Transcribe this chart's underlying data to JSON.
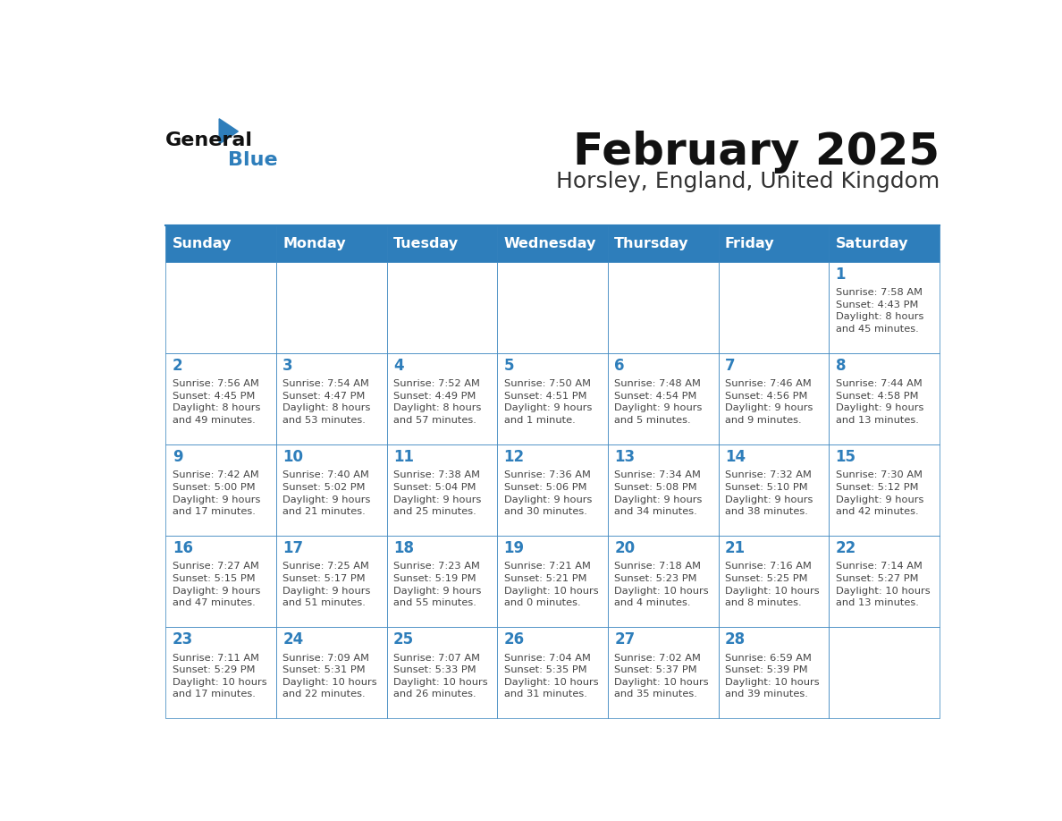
{
  "title": "February 2025",
  "subtitle": "Horsley, England, United Kingdom",
  "days_of_week": [
    "Sunday",
    "Monday",
    "Tuesday",
    "Wednesday",
    "Thursday",
    "Friday",
    "Saturday"
  ],
  "header_bg": "#2E7EBB",
  "header_text": "#FFFFFF",
  "cell_bg": "#FFFFFF",
  "border_color": "#2E7EBB",
  "day_num_color": "#2E7EBB",
  "info_color": "#444444",
  "title_color": "#111111",
  "subtitle_color": "#333333",
  "logo_general_color": "#111111",
  "logo_blue_color": "#2E7EBB",
  "weeks": [
    [
      {
        "day": null,
        "info": ""
      },
      {
        "day": null,
        "info": ""
      },
      {
        "day": null,
        "info": ""
      },
      {
        "day": null,
        "info": ""
      },
      {
        "day": null,
        "info": ""
      },
      {
        "day": null,
        "info": ""
      },
      {
        "day": 1,
        "info": "Sunrise: 7:58 AM\nSunset: 4:43 PM\nDaylight: 8 hours\nand 45 minutes."
      }
    ],
    [
      {
        "day": 2,
        "info": "Sunrise: 7:56 AM\nSunset: 4:45 PM\nDaylight: 8 hours\nand 49 minutes."
      },
      {
        "day": 3,
        "info": "Sunrise: 7:54 AM\nSunset: 4:47 PM\nDaylight: 8 hours\nand 53 minutes."
      },
      {
        "day": 4,
        "info": "Sunrise: 7:52 AM\nSunset: 4:49 PM\nDaylight: 8 hours\nand 57 minutes."
      },
      {
        "day": 5,
        "info": "Sunrise: 7:50 AM\nSunset: 4:51 PM\nDaylight: 9 hours\nand 1 minute."
      },
      {
        "day": 6,
        "info": "Sunrise: 7:48 AM\nSunset: 4:54 PM\nDaylight: 9 hours\nand 5 minutes."
      },
      {
        "day": 7,
        "info": "Sunrise: 7:46 AM\nSunset: 4:56 PM\nDaylight: 9 hours\nand 9 minutes."
      },
      {
        "day": 8,
        "info": "Sunrise: 7:44 AM\nSunset: 4:58 PM\nDaylight: 9 hours\nand 13 minutes."
      }
    ],
    [
      {
        "day": 9,
        "info": "Sunrise: 7:42 AM\nSunset: 5:00 PM\nDaylight: 9 hours\nand 17 minutes."
      },
      {
        "day": 10,
        "info": "Sunrise: 7:40 AM\nSunset: 5:02 PM\nDaylight: 9 hours\nand 21 minutes."
      },
      {
        "day": 11,
        "info": "Sunrise: 7:38 AM\nSunset: 5:04 PM\nDaylight: 9 hours\nand 25 minutes."
      },
      {
        "day": 12,
        "info": "Sunrise: 7:36 AM\nSunset: 5:06 PM\nDaylight: 9 hours\nand 30 minutes."
      },
      {
        "day": 13,
        "info": "Sunrise: 7:34 AM\nSunset: 5:08 PM\nDaylight: 9 hours\nand 34 minutes."
      },
      {
        "day": 14,
        "info": "Sunrise: 7:32 AM\nSunset: 5:10 PM\nDaylight: 9 hours\nand 38 minutes."
      },
      {
        "day": 15,
        "info": "Sunrise: 7:30 AM\nSunset: 5:12 PM\nDaylight: 9 hours\nand 42 minutes."
      }
    ],
    [
      {
        "day": 16,
        "info": "Sunrise: 7:27 AM\nSunset: 5:15 PM\nDaylight: 9 hours\nand 47 minutes."
      },
      {
        "day": 17,
        "info": "Sunrise: 7:25 AM\nSunset: 5:17 PM\nDaylight: 9 hours\nand 51 minutes."
      },
      {
        "day": 18,
        "info": "Sunrise: 7:23 AM\nSunset: 5:19 PM\nDaylight: 9 hours\nand 55 minutes."
      },
      {
        "day": 19,
        "info": "Sunrise: 7:21 AM\nSunset: 5:21 PM\nDaylight: 10 hours\nand 0 minutes."
      },
      {
        "day": 20,
        "info": "Sunrise: 7:18 AM\nSunset: 5:23 PM\nDaylight: 10 hours\nand 4 minutes."
      },
      {
        "day": 21,
        "info": "Sunrise: 7:16 AM\nSunset: 5:25 PM\nDaylight: 10 hours\nand 8 minutes."
      },
      {
        "day": 22,
        "info": "Sunrise: 7:14 AM\nSunset: 5:27 PM\nDaylight: 10 hours\nand 13 minutes."
      }
    ],
    [
      {
        "day": 23,
        "info": "Sunrise: 7:11 AM\nSunset: 5:29 PM\nDaylight: 10 hours\nand 17 minutes."
      },
      {
        "day": 24,
        "info": "Sunrise: 7:09 AM\nSunset: 5:31 PM\nDaylight: 10 hours\nand 22 minutes."
      },
      {
        "day": 25,
        "info": "Sunrise: 7:07 AM\nSunset: 5:33 PM\nDaylight: 10 hours\nand 26 minutes."
      },
      {
        "day": 26,
        "info": "Sunrise: 7:04 AM\nSunset: 5:35 PM\nDaylight: 10 hours\nand 31 minutes."
      },
      {
        "day": 27,
        "info": "Sunrise: 7:02 AM\nSunset: 5:37 PM\nDaylight: 10 hours\nand 35 minutes."
      },
      {
        "day": 28,
        "info": "Sunrise: 6:59 AM\nSunset: 5:39 PM\nDaylight: 10 hours\nand 39 minutes."
      },
      {
        "day": null,
        "info": ""
      }
    ]
  ]
}
